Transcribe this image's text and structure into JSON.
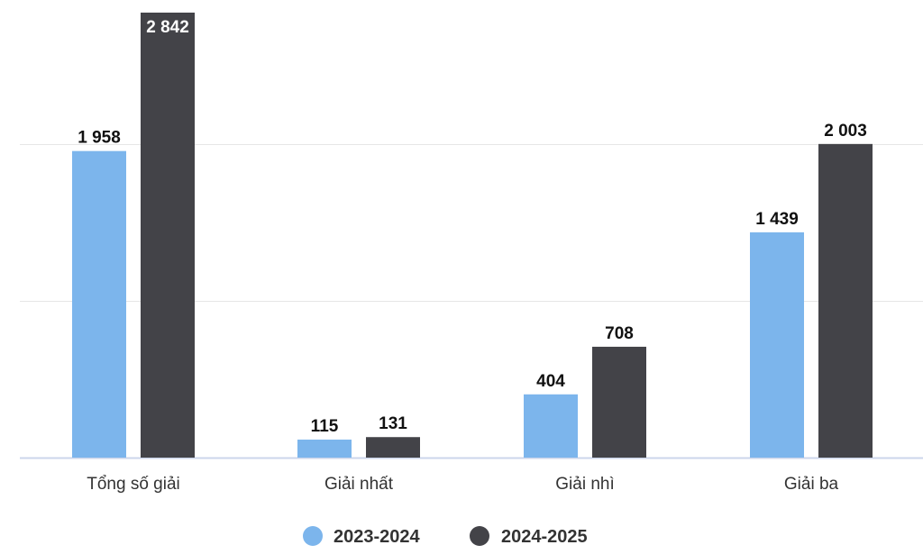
{
  "chart_data": {
    "type": "bar",
    "categories": [
      "Tổng số giải",
      "Giải nhất",
      "Giải nhì",
      "Giải ba"
    ],
    "series": [
      {
        "name": "2023-2024",
        "values": [
          1958,
          115,
          404,
          1439
        ],
        "labels": [
          "1 958",
          "115",
          "404",
          "1 439"
        ],
        "color": "#7cb5ec"
      },
      {
        "name": "2024-2025",
        "values": [
          2842,
          131,
          708,
          2003
        ],
        "labels": [
          "2 842",
          "131",
          "708",
          "2 003"
        ],
        "color": "#434348"
      }
    ],
    "ylim": [
      0,
      2842
    ],
    "gridlines": [
      0,
      1000,
      2000
    ],
    "grid": true,
    "legend": "bottom-center",
    "title": "",
    "xlabel": "",
    "ylabel": ""
  }
}
